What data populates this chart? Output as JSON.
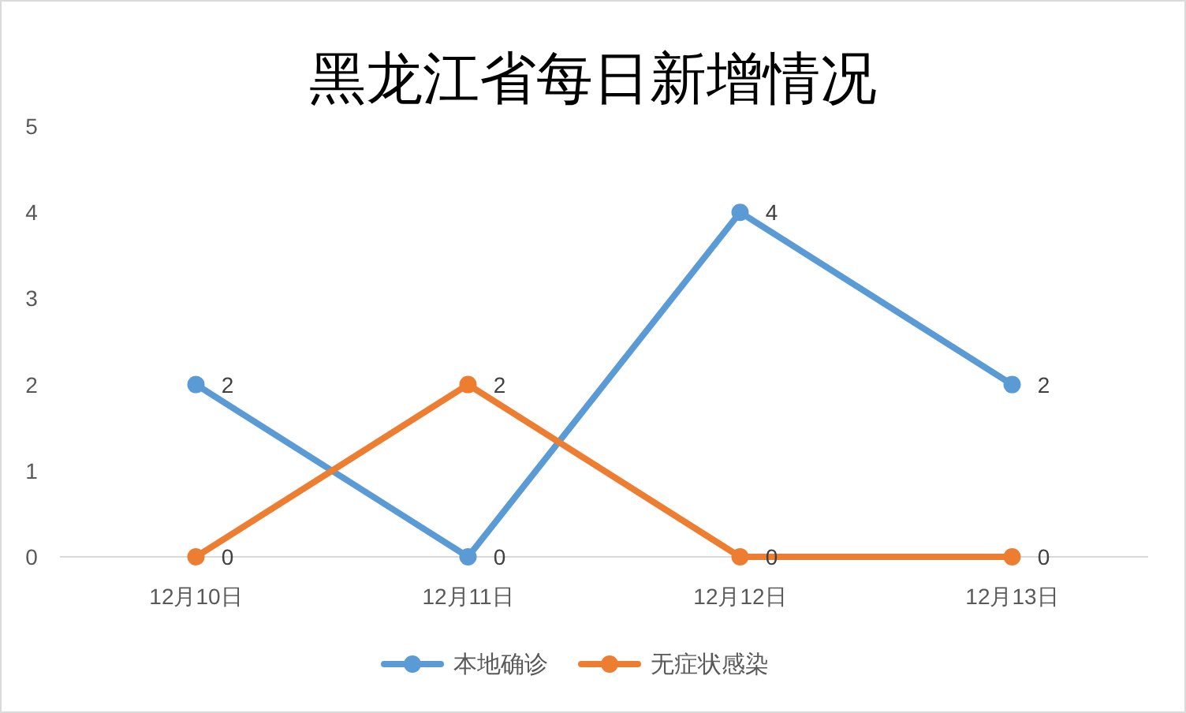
{
  "chart_data": {
    "type": "line",
    "title": "黑龙江省每日新增情况",
    "categories": [
      "12月10日",
      "12月11日",
      "12月12日",
      "12月13日"
    ],
    "series": [
      {
        "name": "本地确诊",
        "color": "#5b9bd5",
        "values": [
          2,
          0,
          4,
          2
        ]
      },
      {
        "name": "无症状感染",
        "color": "#ed7d31",
        "values": [
          0,
          2,
          0,
          0
        ]
      }
    ],
    "ylim": [
      0,
      5
    ],
    "yticks": [
      0,
      1,
      2,
      3,
      4,
      5
    ],
    "data_labels": true,
    "legend": "bottom",
    "marker": "circle"
  }
}
